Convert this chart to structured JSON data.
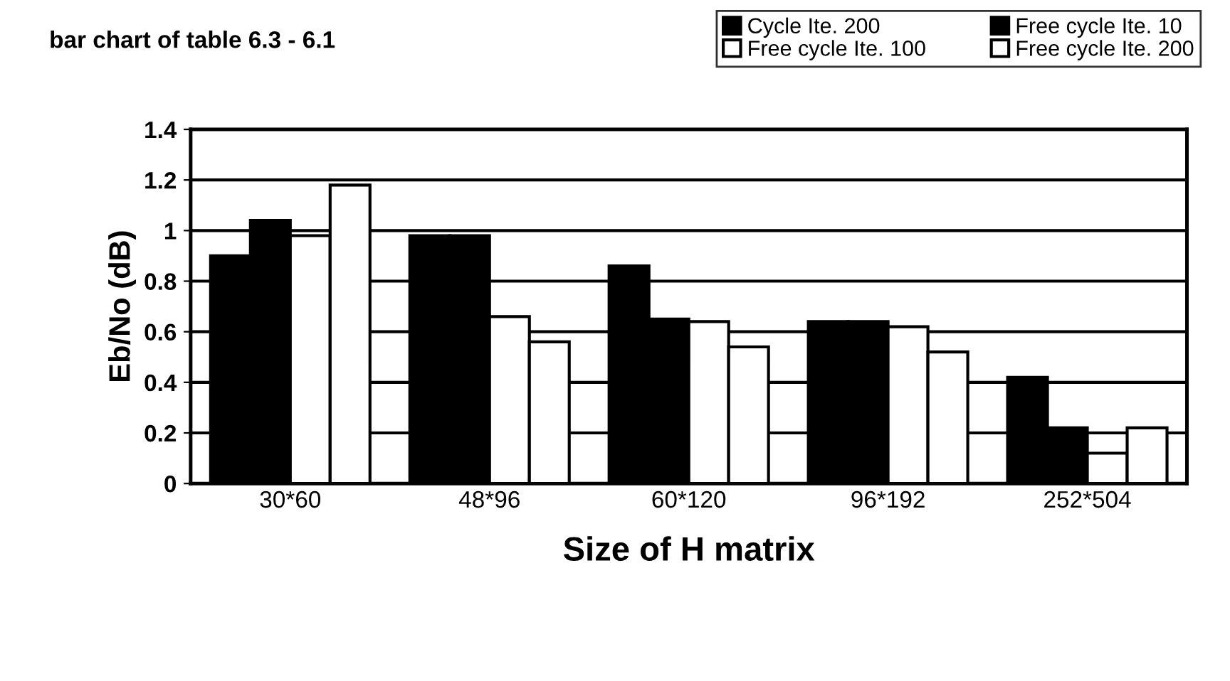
{
  "chart_data": {
    "type": "bar",
    "title": "bar chart of table 6.3 - 6.1",
    "xlabel": "Size of H matrix",
    "ylabel": "Eb/No (dB)",
    "categories": [
      "30*60",
      "48*96",
      "60*120",
      "96*192",
      "252*504"
    ],
    "series": [
      {
        "name": "Cycle Ite. 200",
        "color": "#000000",
        "values": [
          0.9,
          0.98,
          0.86,
          0.64,
          0.42
        ]
      },
      {
        "name": "Free cycle Ite. 10",
        "color": "#000000",
        "values": [
          1.04,
          0.98,
          0.65,
          0.64,
          0.22
        ]
      },
      {
        "name": "Free cycle Ite. 100",
        "color": "#ffffff",
        "values": [
          0.98,
          0.66,
          0.64,
          0.62,
          0.12
        ]
      },
      {
        "name": "Free cycle Ite. 200",
        "color": "#ffffff",
        "values": [
          1.18,
          0.56,
          0.54,
          0.52,
          0.22
        ]
      }
    ],
    "ylim": [
      0,
      1.4
    ],
    "yticks": [
      0,
      0.2,
      0.4,
      0.6,
      0.8,
      1,
      1.2,
      1.4
    ],
    "grid": "y",
    "legend": "top right"
  }
}
